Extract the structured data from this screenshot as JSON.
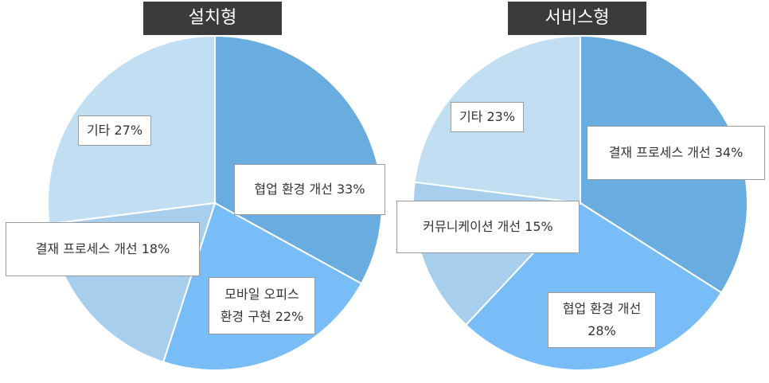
{
  "chart_data": [
    {
      "type": "pie",
      "title": "설치형",
      "slices": [
        {
          "label": "협업 환경 개선",
          "value": 33,
          "display": "협업 환경 개선 33%",
          "color": "#68ace0"
        },
        {
          "label": "모바일 오피스 환경 구현",
          "value": 22,
          "display_lines": [
            "모바일 오피스",
            "환경 구현 22%"
          ],
          "color": "#78bdf8"
        },
        {
          "label": "결재 프로세스 개선",
          "value": 18,
          "display": "결재 프로세스 개선 18%",
          "color": "#a8ceee"
        },
        {
          "label": "기타",
          "value": 27,
          "display": "기타 27%",
          "color": "#c2def3"
        }
      ]
    },
    {
      "type": "pie",
      "title": "서비스형",
      "slices": [
        {
          "label": "결재 프로세스 개선",
          "value": 34,
          "display": "결재 프로세스 개선 34%",
          "color": "#68ace0"
        },
        {
          "label": "협업 환경 개선",
          "value": 28,
          "display_lines": [
            "협업 환경 개선",
            "28%"
          ],
          "color": "#78bdf8"
        },
        {
          "label": "커뮤니케이션 개선",
          "value": 15,
          "display": "커뮤니케이션 개선 15%",
          "color": "#a8ceee"
        },
        {
          "label": "기타",
          "value": 23,
          "display": "기타 23%",
          "color": "#c2def3"
        }
      ]
    }
  ]
}
